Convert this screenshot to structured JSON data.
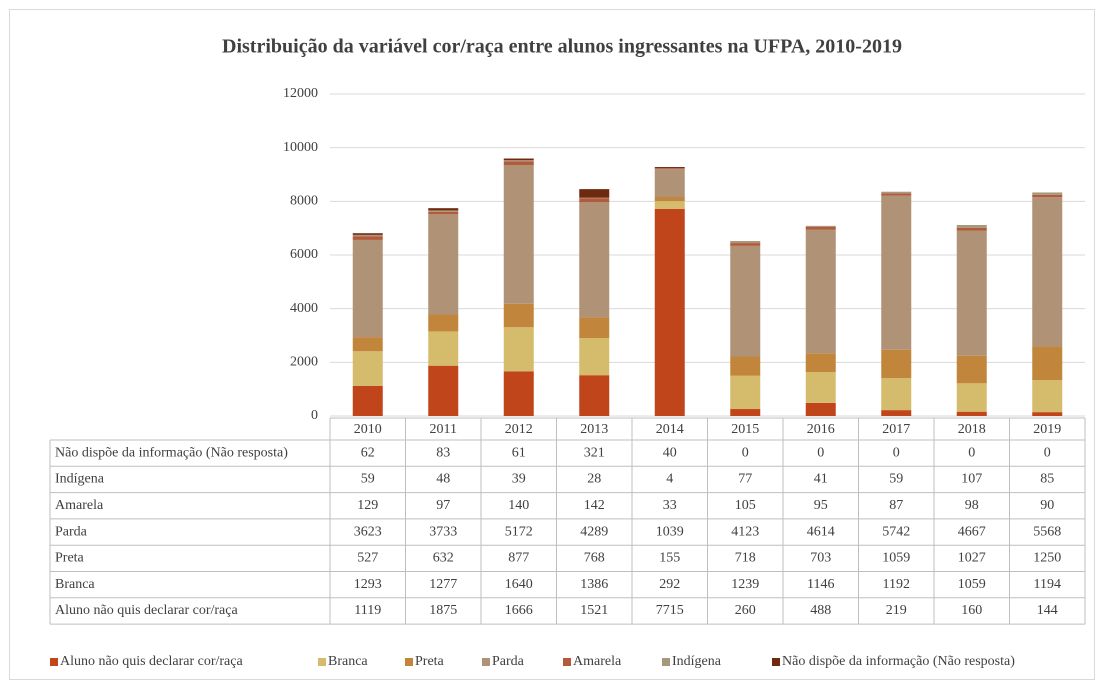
{
  "chart_data": {
    "type": "bar",
    "stacked": true,
    "title": "Distribuição da variável cor/raça entre alunos ingressantes na UFPA, 2010-2019",
    "categories": [
      "2010",
      "2011",
      "2012",
      "2013",
      "2014",
      "2015",
      "2016",
      "2017",
      "2018",
      "2019"
    ],
    "ylim": [
      0,
      12000
    ],
    "yticks": [
      0,
      2000,
      4000,
      6000,
      8000,
      10000,
      12000
    ],
    "grid": true,
    "legend": "bottom",
    "series": [
      {
        "name": "Aluno não quis declarar cor/raça",
        "color": "#c0451b",
        "values": [
          1119,
          1875,
          1666,
          1521,
          7715,
          260,
          488,
          219,
          160,
          144
        ]
      },
      {
        "name": "Branca",
        "color": "#d5bb6c",
        "values": [
          1293,
          1277,
          1640,
          1386,
          292,
          1239,
          1146,
          1192,
          1059,
          1194
        ]
      },
      {
        "name": "Preta",
        "color": "#c1853b",
        "values": [
          527,
          632,
          877,
          768,
          155,
          718,
          703,
          1059,
          1027,
          1250
        ]
      },
      {
        "name": "Parda",
        "color": "#b09276",
        "values": [
          3623,
          3733,
          5172,
          4289,
          1039,
          4123,
          4614,
          5742,
          4667,
          5568
        ]
      },
      {
        "name": "Amarela",
        "color": "#b35a3c",
        "values": [
          129,
          97,
          140,
          142,
          33,
          105,
          95,
          87,
          98,
          90
        ]
      },
      {
        "name": "Indígena",
        "color": "#a6987c",
        "values": [
          59,
          48,
          39,
          28,
          4,
          77,
          41,
          59,
          107,
          85
        ]
      },
      {
        "name": "Não dispõe da informação (Não resposta)",
        "color": "#6e2a0f",
        "values": [
          62,
          83,
          61,
          321,
          40,
          0,
          0,
          0,
          0,
          0
        ]
      }
    ]
  }
}
